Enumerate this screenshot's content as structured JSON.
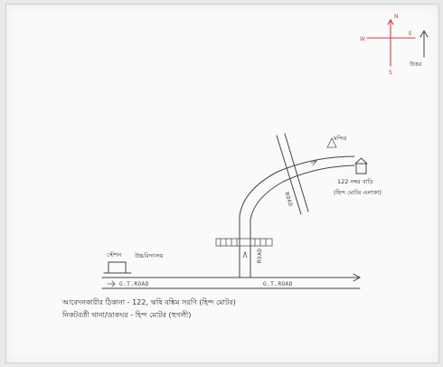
{
  "compass": {
    "north": "N",
    "east": "E",
    "west": "W",
    "south": "S",
    "north_arrow_label": "উত্তর"
  },
  "map": {
    "roads": {
      "main_road_left": "G.T.ROAD",
      "main_road_right": "G.T.ROAD",
      "branch_road": "ROAD",
      "crossing_road": "ROAD"
    },
    "landmarks": {
      "school_label_line1": "স্টেশন",
      "school_label_line2": "উচ্চবিদ্যালয়",
      "destination_label_line1": "122 নম্বর বাড়ি",
      "destination_label_line2": "(হিন্দ মোটর এলাকা)",
      "top_right_label": "মন্দির"
    },
    "footer": {
      "line1": "আবেদনকারীর ঠিকানা - 122, ঋষি বঙ্কিম সরণি (হিন্দ মোটর)",
      "line2": "নিকটবর্তী থানা/ডাকঘর - হিন্দ মোটর (হুগলী)"
    }
  }
}
